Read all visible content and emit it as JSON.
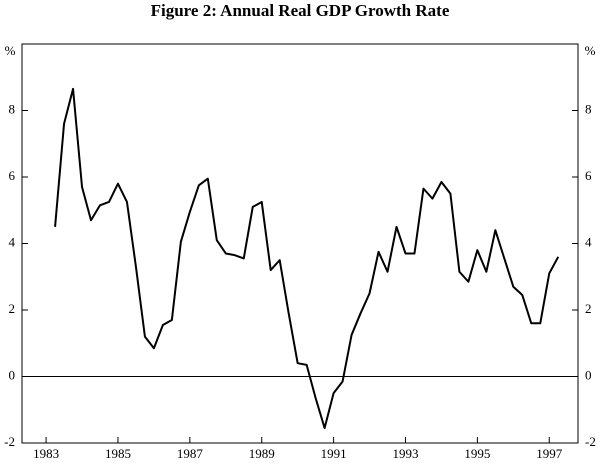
{
  "chart_data": {
    "type": "line",
    "title": "Figure 2: Annual Real GDP Growth Rate",
    "ylabel": "%",
    "y2label": "%",
    "color": "#000000",
    "x": [
      1983.25,
      1983.5,
      1983.75,
      1984,
      1984.25,
      1984.5,
      1984.75,
      1985,
      1985.25,
      1985.5,
      1985.75,
      1986,
      1986.25,
      1986.5,
      1986.75,
      1987,
      1987.25,
      1987.5,
      1987.75,
      1988,
      1988.25,
      1988.5,
      1988.75,
      1989,
      1989.25,
      1989.5,
      1989.75,
      1990,
      1990.25,
      1990.5,
      1990.75,
      1991,
      1991.25,
      1991.5,
      1991.75,
      1992,
      1992.25,
      1992.5,
      1992.75,
      1993,
      1993.25,
      1993.5,
      1993.75,
      1994,
      1994.25,
      1994.5,
      1994.75,
      1995,
      1995.25,
      1995.5,
      1995.75,
      1996,
      1996.25,
      1996.5,
      1996.75,
      1997,
      1997.25
    ],
    "values": [
      4.5,
      7.6,
      8.65,
      5.7,
      4.7,
      5.15,
      5.25,
      5.8,
      5.25,
      3.3,
      1.2,
      0.85,
      1.55,
      1.7,
      4.05,
      4.95,
      5.75,
      5.95,
      4.1,
      3.7,
      3.65,
      3.55,
      5.1,
      5.25,
      3.2,
      3.5,
      1.9,
      0.4,
      0.35,
      -0.65,
      -1.55,
      -0.5,
      -0.15,
      1.25,
      1.9,
      2.5,
      3.75,
      3.15,
      4.5,
      3.7,
      3.7,
      5.65,
      5.35,
      5.85,
      5.5,
      3.15,
      2.85,
      3.8,
      3.15,
      4.4,
      3.55,
      2.7,
      2.45,
      1.6,
      1.6,
      3.1,
      3.6
    ],
    "xlim": [
      1982.33,
      1997.8
    ],
    "xticks": [
      1983,
      1985,
      1987,
      1989,
      1991,
      1993,
      1995,
      1997
    ],
    "ylim": [
      -2,
      10
    ],
    "yticks": [
      -2,
      0,
      2,
      4,
      6,
      8
    ],
    "y2lim": [
      -2,
      10
    ],
    "y2ticks": [
      -2,
      0,
      2,
      4,
      6,
      8
    ],
    "hline": 0
  }
}
